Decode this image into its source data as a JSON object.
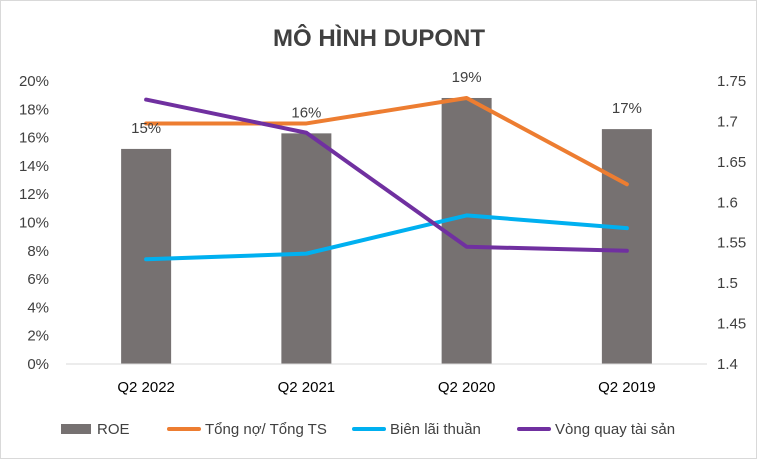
{
  "chart_data": {
    "type": "bar+line",
    "title": "MÔ HÌNH DUPONT",
    "categories": [
      "Q2 2022",
      "Q2 2021",
      "Q2 2020",
      "Q2 2019"
    ],
    "bar_series": {
      "name": "ROE",
      "values": [
        15.2,
        16.3,
        18.8,
        16.6
      ],
      "data_labels": [
        "15%",
        "16%",
        "19%",
        "17%"
      ],
      "color": "#767171"
    },
    "line_series": [
      {
        "name": "Tổng nợ/ Tổng TS",
        "values": [
          17.0,
          17.0,
          18.8,
          12.7
        ],
        "axis": "left",
        "color": "#ED7D31"
      },
      {
        "name": "Biên lãi thuần",
        "values": [
          7.4,
          7.8,
          10.5,
          9.6
        ],
        "axis": "left",
        "color": "#00B0F0"
      },
      {
        "name": "Vòng quay tài sản",
        "values": [
          1.727,
          1.686,
          1.545,
          1.54
        ],
        "axis": "right",
        "color": "#7030A0"
      }
    ],
    "left_axis": {
      "min": 0,
      "max": 20,
      "step": 2,
      "ticks": [
        "0%",
        "2%",
        "4%",
        "6%",
        "8%",
        "10%",
        "12%",
        "14%",
        "16%",
        "18%",
        "20%"
      ]
    },
    "right_axis": {
      "min": 1.4,
      "max": 1.75,
      "step": 0.05,
      "ticks": [
        "1.4",
        "1.45",
        "1.5",
        "1.55",
        "1.6",
        "1.65",
        "1.7",
        "1.75"
      ]
    },
    "legend": {
      "position": "bottom",
      "entries": [
        "ROE",
        "Tổng nợ/ Tổng TS",
        "Biên lãi thuần",
        "Vòng quay tài sản"
      ]
    },
    "grid": false
  }
}
